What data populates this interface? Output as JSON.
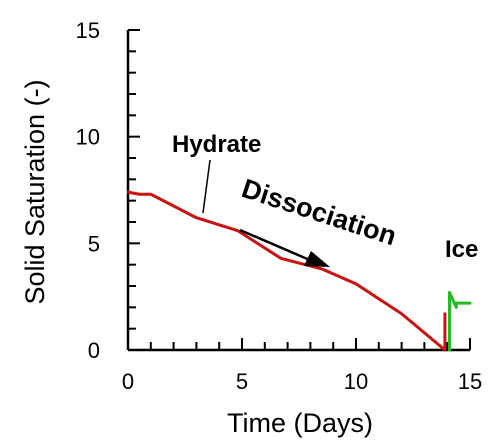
{
  "chart_data": {
    "type": "line",
    "title": "",
    "xlabel": "Time (Days)",
    "ylabel": "Solid Saturation (-)",
    "xlim": [
      0,
      15
    ],
    "ylim": [
      0,
      15
    ],
    "xticks": [
      "0",
      "5",
      "10",
      "15"
    ],
    "yticks": [
      "0",
      "5",
      "10",
      "15"
    ],
    "grid": false,
    "legend": "none",
    "series": [
      {
        "color": "#cc1111",
        "x": [
          0,
          0.5,
          1.0,
          3.0,
          4.8,
          6.7,
          8.5,
          10.0,
          12.0,
          13.9,
          13.9
        ],
        "y": [
          7.4,
          7.3,
          7.3,
          6.2,
          5.6,
          4.3,
          3.8,
          3.1,
          1.7,
          0.0,
          1.7
        ]
      },
      {
        "color": "#22bb22",
        "x": [
          14.1,
          14.1,
          14.1,
          14.4,
          14.4,
          15.0
        ],
        "y": [
          0.0,
          1.5,
          2.7,
          2.0,
          2.2,
          2.2
        ]
      }
    ],
    "annotations": [
      {
        "text": "Hydrate"
      },
      {
        "text": "Dissociation"
      },
      {
        "text": "Ice"
      }
    ]
  }
}
